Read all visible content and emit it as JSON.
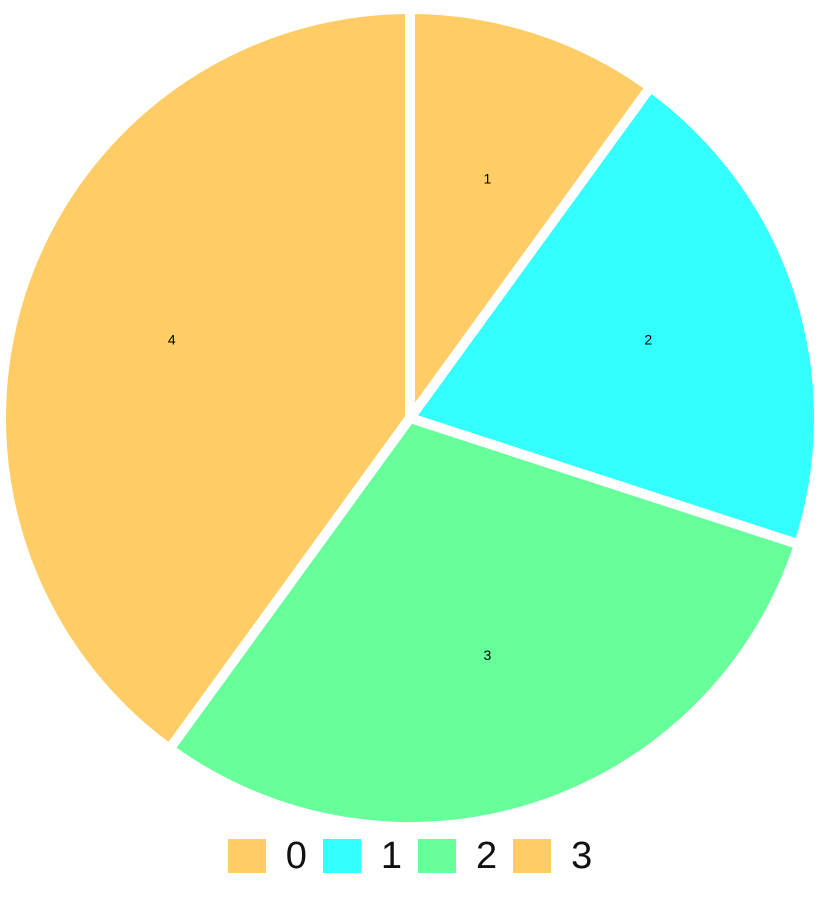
{
  "chart_data": {
    "type": "pie",
    "title": "",
    "categories": [
      "0",
      "1",
      "2",
      "3"
    ],
    "values": [
      1,
      2,
      3,
      4
    ],
    "data_labels": [
      "1",
      "2",
      "3",
      "4"
    ],
    "colors": [
      "#FFCC66",
      "#33FFFF",
      "#66FF99",
      "#FFCC66"
    ],
    "start_angle_deg": 0,
    "direction": "clockwise",
    "slice_separator_color": "#FFFFFF",
    "legend": {
      "position": "bottom-center",
      "entries": [
        {
          "label": "0",
          "color": "#FFCC66"
        },
        {
          "label": "1",
          "color": "#33FFFF"
        },
        {
          "label": "2",
          "color": "#66FF99"
        },
        {
          "label": "3",
          "color": "#FFCC66"
        }
      ]
    }
  }
}
